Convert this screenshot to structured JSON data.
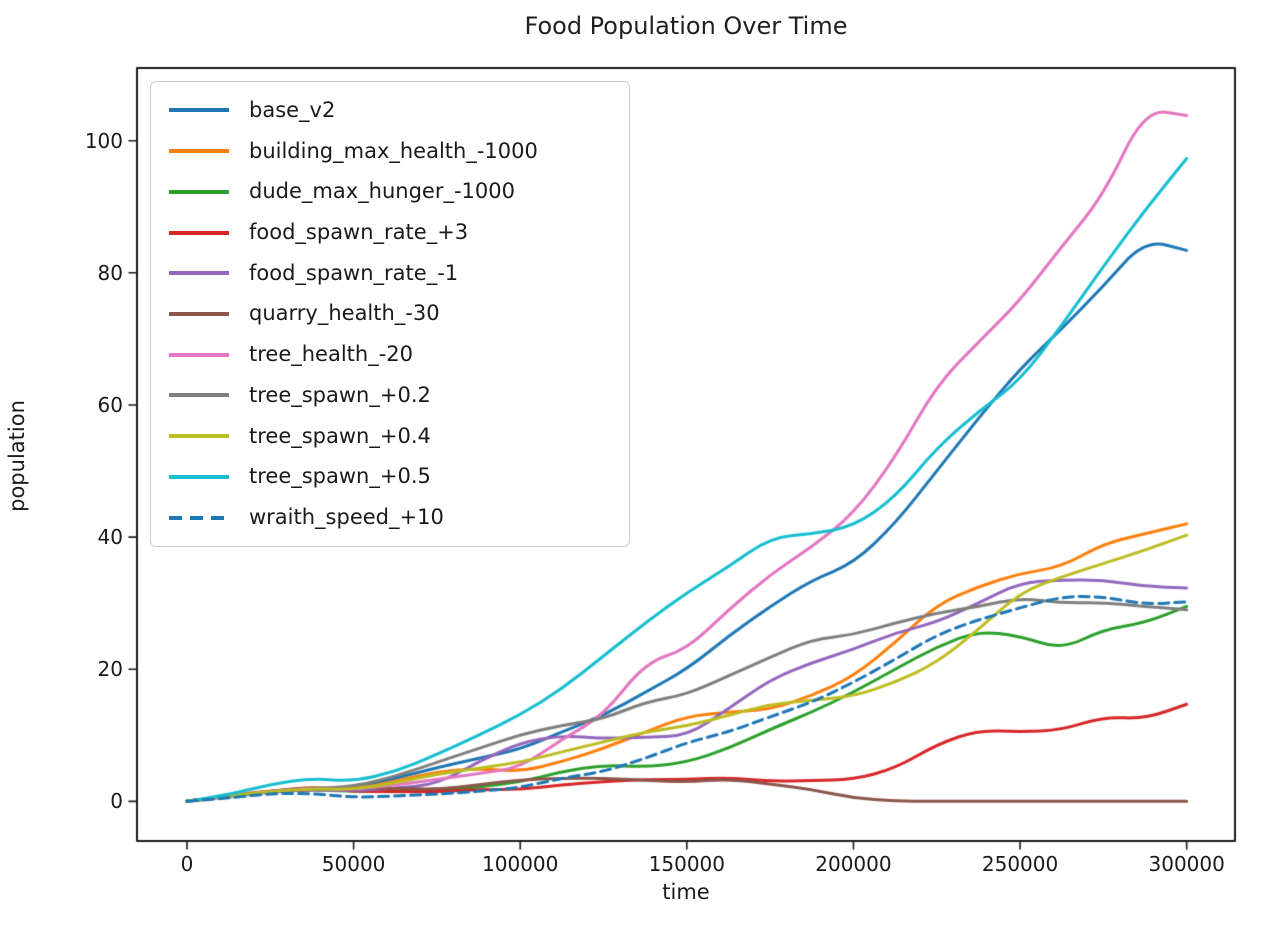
{
  "title": "Food Population Over Time",
  "xlabel": "time",
  "ylabel": "population",
  "chart_data": {
    "type": "line",
    "title": "Food Population Over Time",
    "xlabel": "time",
    "ylabel": "population",
    "xlim": [
      -15000,
      314500
    ],
    "ylim": [
      -6,
      111
    ],
    "grid": false,
    "legend_position": "upper left",
    "x_ticks": [
      0,
      50000,
      100000,
      150000,
      200000,
      250000,
      300000
    ],
    "x_tick_labels": [
      "0",
      "50000",
      "100000",
      "150000",
      "200000",
      "250000",
      "300000"
    ],
    "y_ticks": [
      0,
      20,
      40,
      60,
      80,
      100
    ],
    "y_tick_labels": [
      "0",
      "20",
      "40",
      "60",
      "80",
      "100"
    ],
    "x": [
      0,
      12500,
      25000,
      37500,
      50000,
      62500,
      75000,
      87500,
      100000,
      112500,
      125000,
      137500,
      150000,
      162500,
      175000,
      187500,
      200000,
      212500,
      225000,
      237500,
      250000,
      262500,
      275000,
      287500,
      300000
    ],
    "series": [
      {
        "name": "base_v2",
        "color": "#1f77b4",
        "dash": false,
        "values": [
          0,
          0.8,
          1.5,
          2,
          2,
          3.5,
          5.1,
          6.5,
          7.9,
          10.5,
          13,
          16.5,
          20,
          25,
          29.5,
          33.5,
          36,
          42,
          50,
          58,
          65.5,
          71.5,
          78,
          85,
          83.4
        ]
      },
      {
        "name": "building_max_health_-1000",
        "color": "#ff7f0e",
        "dash": false,
        "values": [
          0,
          0.9,
          1.6,
          2.1,
          1.8,
          3,
          4.5,
          5,
          4.5,
          6,
          8,
          10.5,
          12.9,
          13.5,
          13.9,
          16,
          18.9,
          24,
          29.8,
          32.5,
          34.5,
          35.5,
          39,
          40.5,
          42
        ]
      },
      {
        "name": "dude_max_hunger_-1000",
        "color": "#2ca02c",
        "dash": false,
        "values": [
          0,
          0.8,
          1.5,
          1.8,
          1.5,
          1.5,
          1.5,
          2.2,
          2.9,
          4.5,
          5.5,
          5.2,
          5.9,
          8,
          10.9,
          13.5,
          16.5,
          20,
          23.4,
          25.8,
          25,
          23,
          26,
          27,
          29.5
        ]
      },
      {
        "name": "food_spawn_rate_+3",
        "color": "#d62728",
        "dash": false,
        "values": [
          0,
          0.8,
          1.5,
          2.2,
          1.5,
          1.5,
          1.4,
          1.8,
          1.8,
          2.5,
          3,
          3.3,
          3.3,
          3.6,
          3,
          3.2,
          3.3,
          5,
          8.6,
          10.8,
          10.5,
          10.8,
          12.8,
          12.5,
          14.7
        ]
      },
      {
        "name": "food_spawn_rate_-1",
        "color": "#9467bd",
        "dash": false,
        "values": [
          0,
          0.7,
          1.4,
          1.8,
          1.6,
          2,
          2.6,
          6,
          8.9,
          10,
          9.5,
          9.7,
          9.9,
          14,
          18.4,
          21,
          23,
          25.5,
          27.1,
          30,
          33.1,
          33.5,
          33.5,
          32.5,
          32.3
        ]
      },
      {
        "name": "quarry_health_-30",
        "color": "#8c564b",
        "dash": false,
        "values": [
          0,
          0.8,
          1.5,
          1.8,
          2,
          2,
          1.8,
          2.5,
          3.3,
          3.5,
          3.5,
          3.2,
          2.9,
          3.4,
          2.6,
          1.8,
          0.5,
          0.05,
          0,
          0,
          0,
          0,
          0,
          0,
          0
        ]
      },
      {
        "name": "tree_health_-20",
        "color": "#e377c2",
        "dash": false,
        "values": [
          0,
          0.8,
          1.6,
          2,
          1.8,
          2.5,
          3.3,
          4.2,
          5.1,
          9.4,
          13,
          21,
          23,
          29,
          34.3,
          38.5,
          43.5,
          52,
          63,
          69.5,
          75.8,
          84,
          91.7,
          104.8,
          103.8
        ]
      },
      {
        "name": "tree_spawn_+0.2",
        "color": "#7f7f7f",
        "dash": false,
        "values": [
          0,
          0.8,
          1.5,
          2,
          2.2,
          3.8,
          5.9,
          8,
          10.1,
          11.5,
          12.5,
          15,
          16.2,
          19,
          21.8,
          24.5,
          25.2,
          27,
          28.5,
          29.5,
          30.8,
          30,
          30.1,
          29.5,
          29
        ]
      },
      {
        "name": "tree_spawn_+0.4",
        "color": "#bcbd22",
        "dash": false,
        "values": [
          0,
          0.8,
          1.5,
          1.9,
          1.8,
          2.8,
          4.1,
          5,
          5.9,
          7.5,
          9,
          10.5,
          11.4,
          13,
          14.7,
          15.3,
          15.9,
          18,
          21,
          26,
          31.6,
          34,
          36,
          38,
          40.3
        ]
      },
      {
        "name": "tree_spawn_+0.5",
        "color": "#17becf",
        "dash": false,
        "values": [
          0,
          1,
          2.6,
          3.5,
          3,
          4.5,
          7.1,
          10,
          13.1,
          17,
          22,
          27,
          31.6,
          35.5,
          39.9,
          40.5,
          41.6,
          46,
          53.5,
          59,
          63.7,
          72,
          81,
          89.5,
          97.3
        ]
      },
      {
        "name": "wraith_speed_+10",
        "color": "#1f77b4",
        "dash": true,
        "values": [
          0,
          0.5,
          1.2,
          1.2,
          0.6,
          0.8,
          1.1,
          1.5,
          2.1,
          3.5,
          4.5,
          6.5,
          8.9,
          10.5,
          12.8,
          15,
          18,
          21.5,
          25.2,
          27.5,
          29.3,
          31,
          31,
          29.8,
          30.2
        ]
      }
    ]
  }
}
